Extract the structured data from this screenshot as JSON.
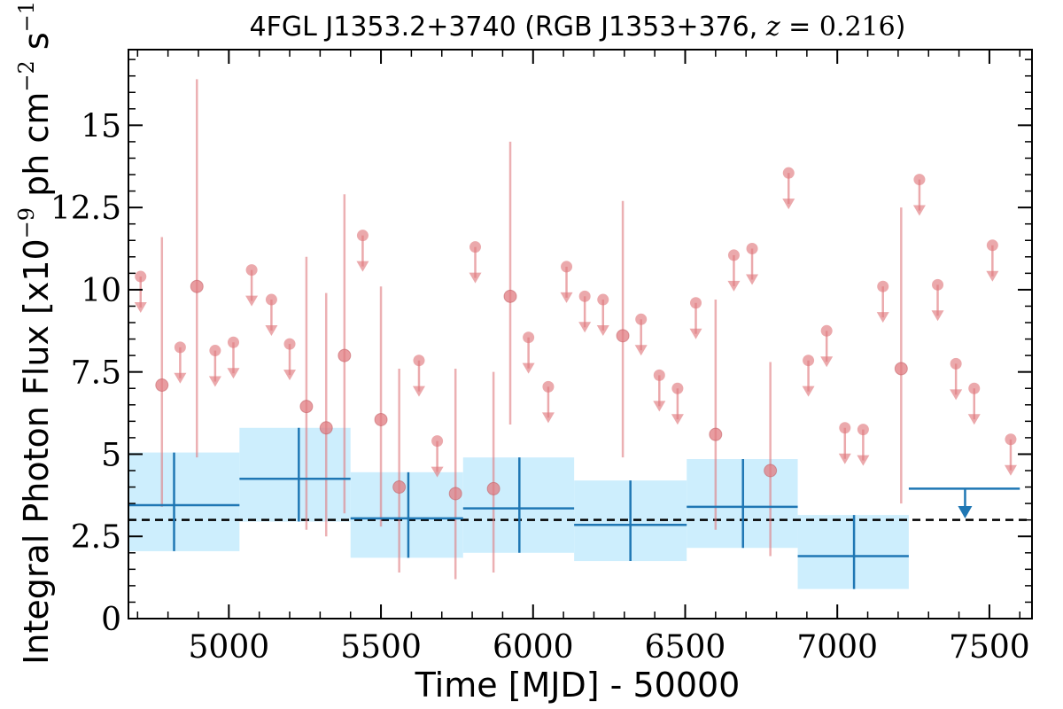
{
  "chart_data": {
    "type": "scatter",
    "title": {
      "prefix": "4FGL J1353.2+3740 (RGB J1353+376, ",
      "z_symbol": "z",
      "z_equals": " = ",
      "z_value": "0.216",
      "suffix": ")"
    },
    "xlabel": "Time [MJD] - 50000",
    "ylabel": {
      "prefix": "Integral Photon Flux [x10",
      "exp": "−9",
      "mid": " ph cm",
      "exp2": "−2",
      "mid2": " s",
      "exp3": "−1",
      "suffix": "]"
    },
    "xlim": [
      4670,
      7640
    ],
    "ylim": [
      0,
      17.3
    ],
    "x_ticks": [
      {
        "value": 5000,
        "label": "5000"
      },
      {
        "value": 5500,
        "label": "5500"
      },
      {
        "value": 6000,
        "label": "6000"
      },
      {
        "value": 6500,
        "label": "6500"
      },
      {
        "value": 7000,
        "label": "7000"
      },
      {
        "value": 7500,
        "label": "7500"
      }
    ],
    "y_ticks": [
      {
        "value": 0,
        "label": "0"
      },
      {
        "value": 2.5,
        "label": "2.5"
      },
      {
        "value": 5,
        "label": "5"
      },
      {
        "value": 7.5,
        "label": "7.5"
      },
      {
        "value": 10,
        "label": "10"
      },
      {
        "value": 12.5,
        "label": "12.5"
      },
      {
        "value": 15,
        "label": "15"
      }
    ],
    "mean_flux": 3.0,
    "colors": {
      "detection": "#e07b80",
      "band": "#cdeefd",
      "binned": "#1f77b4",
      "mean_line": "#000000"
    },
    "series": [
      {
        "kind": "fine_detections",
        "points": [
          {
            "x": 4780,
            "y": 7.1,
            "low": 3.4,
            "high": 11.6
          },
          {
            "x": 4895,
            "y": 10.1,
            "low": 4.9,
            "high": 16.4
          },
          {
            "x": 5255,
            "y": 6.45,
            "low": 2.7,
            "high": 11.0
          },
          {
            "x": 5320,
            "y": 5.8,
            "low": 2.5,
            "high": 9.9
          },
          {
            "x": 5380,
            "y": 8.0,
            "low": 3.2,
            "high": 12.9
          },
          {
            "x": 5500,
            "y": 6.05,
            "low": 2.8,
            "high": 10.1
          },
          {
            "x": 5560,
            "y": 4.0,
            "low": 1.4,
            "high": 7.6
          },
          {
            "x": 5745,
            "y": 3.8,
            "low": 1.2,
            "high": 7.6
          },
          {
            "x": 5870,
            "y": 3.95,
            "low": 1.4,
            "high": 7.5
          },
          {
            "x": 5925,
            "y": 9.8,
            "low": 5.9,
            "high": 14.5
          },
          {
            "x": 6295,
            "y": 8.6,
            "low": 4.9,
            "high": 12.7
          },
          {
            "x": 6600,
            "y": 5.6,
            "low": 2.7,
            "high": 9.7
          },
          {
            "x": 6780,
            "y": 4.5,
            "low": 1.9,
            "high": 7.8
          },
          {
            "x": 7210,
            "y": 7.6,
            "low": 3.5,
            "high": 12.5
          }
        ]
      },
      {
        "kind": "fine_upper_limits",
        "points": [
          {
            "x": 4710,
            "y": 10.4
          },
          {
            "x": 4840,
            "y": 8.25
          },
          {
            "x": 4955,
            "y": 8.15
          },
          {
            "x": 5015,
            "y": 8.4
          },
          {
            "x": 5075,
            "y": 10.6
          },
          {
            "x": 5140,
            "y": 9.7
          },
          {
            "x": 5200,
            "y": 8.35
          },
          {
            "x": 5440,
            "y": 11.65
          },
          {
            "x": 5625,
            "y": 7.85
          },
          {
            "x": 5685,
            "y": 5.4
          },
          {
            "x": 5810,
            "y": 11.3
          },
          {
            "x": 5985,
            "y": 8.55
          },
          {
            "x": 6050,
            "y": 7.05
          },
          {
            "x": 6110,
            "y": 10.7
          },
          {
            "x": 6170,
            "y": 9.8
          },
          {
            "x": 6230,
            "y": 9.7
          },
          {
            "x": 6355,
            "y": 9.1
          },
          {
            "x": 6415,
            "y": 7.4
          },
          {
            "x": 6475,
            "y": 7.0
          },
          {
            "x": 6535,
            "y": 9.6
          },
          {
            "x": 6660,
            "y": 11.05
          },
          {
            "x": 6720,
            "y": 11.25
          },
          {
            "x": 6840,
            "y": 13.55
          },
          {
            "x": 6905,
            "y": 7.85
          },
          {
            "x": 6965,
            "y": 8.75
          },
          {
            "x": 7025,
            "y": 5.8
          },
          {
            "x": 7085,
            "y": 5.75
          },
          {
            "x": 7150,
            "y": 10.1
          },
          {
            "x": 7270,
            "y": 13.35
          },
          {
            "x": 7330,
            "y": 10.15
          },
          {
            "x": 7390,
            "y": 7.75
          },
          {
            "x": 7450,
            "y": 7.0
          },
          {
            "x": 7510,
            "y": 11.35
          },
          {
            "x": 7570,
            "y": 5.45
          }
        ]
      },
      {
        "kind": "binned_detections",
        "bins": [
          {
            "x0": 4670,
            "x1": 5035,
            "xc": 4820,
            "y": 3.45,
            "low": 2.05,
            "high": 5.05
          },
          {
            "x0": 5035,
            "x1": 5400,
            "xc": 5230,
            "y": 4.25,
            "low": 2.95,
            "high": 5.8
          },
          {
            "x0": 5400,
            "x1": 5770,
            "xc": 5590,
            "y": 3.05,
            "low": 1.85,
            "high": 4.45
          },
          {
            "x0": 5770,
            "x1": 6135,
            "xc": 5955,
            "y": 3.35,
            "low": 2.0,
            "high": 4.9
          },
          {
            "x0": 6135,
            "x1": 6505,
            "xc": 6320,
            "y": 2.85,
            "low": 1.75,
            "high": 4.2
          },
          {
            "x0": 6505,
            "x1": 6870,
            "xc": 6690,
            "y": 3.4,
            "low": 2.15,
            "high": 4.85
          },
          {
            "x0": 6870,
            "x1": 7235,
            "xc": 7055,
            "y": 1.9,
            "low": 0.9,
            "high": 3.15
          }
        ]
      },
      {
        "kind": "binned_upper_limit",
        "bins": [
          {
            "x0": 7235,
            "x1": 7600,
            "xc": 7420,
            "y": 3.95
          }
        ]
      }
    ]
  }
}
